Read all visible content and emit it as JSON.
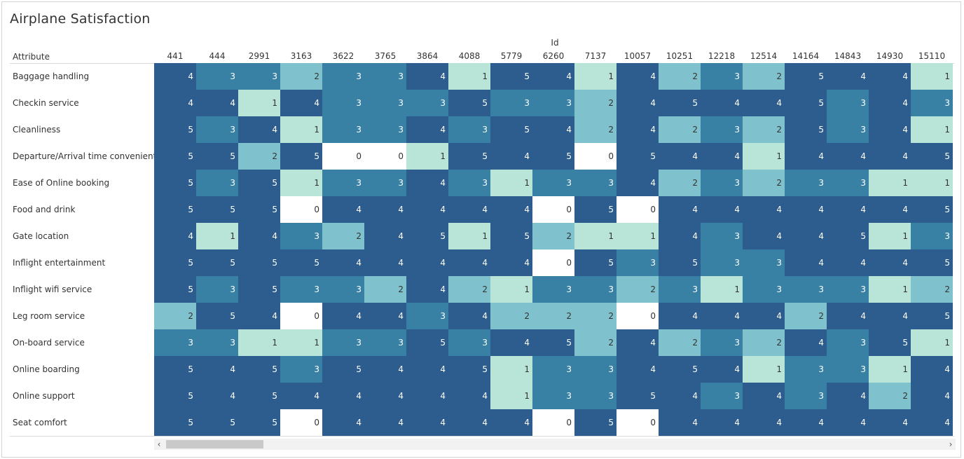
{
  "title": "Airplane Satisfaction",
  "colors": {
    "v0": "#ffffff",
    "v1": "#b9e4d8",
    "v2": "#7fc1cc",
    "v3": "#3880a4",
    "v4": "#2c5d8e",
    "v5": "#2c5d8e",
    "text_light": "#ffffff",
    "text_dark": "#333333"
  },
  "scrollbar": {
    "left_icon": "chevron-left-icon",
    "right_icon": "chevron-right-icon"
  },
  "chart_data": {
    "type": "heatmap",
    "title": "Airplane Satisfaction",
    "xlabel": "Id",
    "ylabel": "Attribute",
    "x": [
      "441",
      "444",
      "2991",
      "3163",
      "3622",
      "3765",
      "3864",
      "4088",
      "5779",
      "6260",
      "7137",
      "10057",
      "10251",
      "12218",
      "12514",
      "14164",
      "14843",
      "14930",
      "15110"
    ],
    "y": [
      "Baggage handling",
      "Checkin service",
      "Cleanliness",
      "Departure/Arrival time convenient",
      "Ease of Online booking",
      "Food and drink",
      "Gate location",
      "Inflight entertainment",
      "Inflight wifi service",
      "Leg room service",
      "On-board service",
      "Online boarding",
      "Online support",
      "Seat comfort"
    ],
    "values": [
      [
        4,
        3,
        3,
        2,
        3,
        3,
        4,
        1,
        5,
        4,
        1,
        4,
        2,
        3,
        2,
        5,
        4,
        4,
        1
      ],
      [
        4,
        4,
        1,
        4,
        3,
        3,
        3,
        5,
        3,
        3,
        2,
        4,
        5,
        4,
        4,
        5,
        3,
        4,
        3
      ],
      [
        5,
        3,
        4,
        1,
        3,
        3,
        4,
        3,
        5,
        4,
        2,
        4,
        2,
        3,
        2,
        5,
        3,
        4,
        1
      ],
      [
        5,
        5,
        2,
        5,
        0,
        0,
        1,
        5,
        4,
        5,
        0,
        5,
        4,
        4,
        1,
        4,
        4,
        4,
        5
      ],
      [
        5,
        3,
        5,
        1,
        3,
        3,
        4,
        3,
        1,
        3,
        3,
        4,
        2,
        3,
        2,
        3,
        3,
        1,
        1
      ],
      [
        5,
        5,
        5,
        0,
        4,
        4,
        4,
        4,
        4,
        0,
        5,
        0,
        4,
        4,
        4,
        4,
        4,
        4,
        5
      ],
      [
        4,
        1,
        4,
        3,
        2,
        4,
        5,
        1,
        5,
        2,
        1,
        1,
        4,
        3,
        4,
        4,
        5,
        1,
        3
      ],
      [
        5,
        5,
        5,
        5,
        4,
        4,
        4,
        4,
        4,
        0,
        5,
        3,
        5,
        3,
        3,
        4,
        4,
        4,
        5
      ],
      [
        5,
        3,
        5,
        3,
        3,
        2,
        4,
        2,
        1,
        3,
        3,
        2,
        3,
        1,
        3,
        3,
        3,
        1,
        2
      ],
      [
        2,
        5,
        4,
        0,
        4,
        4,
        3,
        4,
        2,
        2,
        2,
        0,
        4,
        4,
        4,
        2,
        4,
        4,
        5
      ],
      [
        3,
        3,
        1,
        1,
        3,
        3,
        5,
        3,
        4,
        5,
        2,
        4,
        2,
        3,
        2,
        4,
        3,
        5,
        1
      ],
      [
        5,
        4,
        5,
        3,
        5,
        4,
        4,
        5,
        1,
        3,
        3,
        4,
        5,
        4,
        1,
        3,
        3,
        1,
        4
      ],
      [
        5,
        4,
        5,
        4,
        4,
        4,
        4,
        4,
        1,
        3,
        3,
        5,
        4,
        3,
        4,
        3,
        4,
        2,
        4
      ],
      [
        5,
        5,
        5,
        0,
        4,
        4,
        4,
        4,
        4,
        0,
        5,
        0,
        4,
        4,
        4,
        4,
        4,
        4,
        4
      ]
    ],
    "value_range": [
      0,
      5
    ],
    "legend": "none",
    "grid": false
  }
}
